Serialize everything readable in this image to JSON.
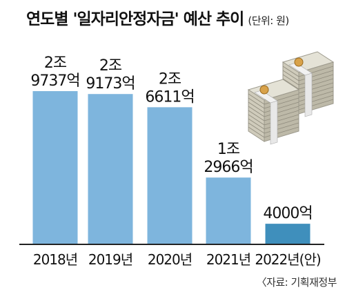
{
  "title": "연도별 '일자리안정자금' 예산 추이",
  "unit": "(단위: 원)",
  "source": "〈자료: 기획재정부",
  "colors": {
    "bar": "#7eb5dd",
    "bar_highlight": "#3f8fbc",
    "axis": "#222222"
  },
  "chart_data": {
    "type": "bar",
    "title": "연도별 '일자리안정자금' 예산 추이",
    "unit": "원",
    "categories": [
      "2018년",
      "2019년",
      "2020년",
      "2021년",
      "2022년(안)"
    ],
    "values_억": [
      29737,
      29173,
      26611,
      12966,
      4000
    ],
    "data_labels": [
      [
        "2조",
        "9737억"
      ],
      [
        "2조",
        "9173억"
      ],
      [
        "2조",
        "6611억"
      ],
      [
        "1조",
        "2966억"
      ],
      [
        "4000억"
      ]
    ],
    "highlight_index": 4,
    "ylim": [
      0,
      29737
    ],
    "grid": false,
    "legend": "none"
  },
  "illustration": {
    "icon": "money-stack-icon"
  }
}
